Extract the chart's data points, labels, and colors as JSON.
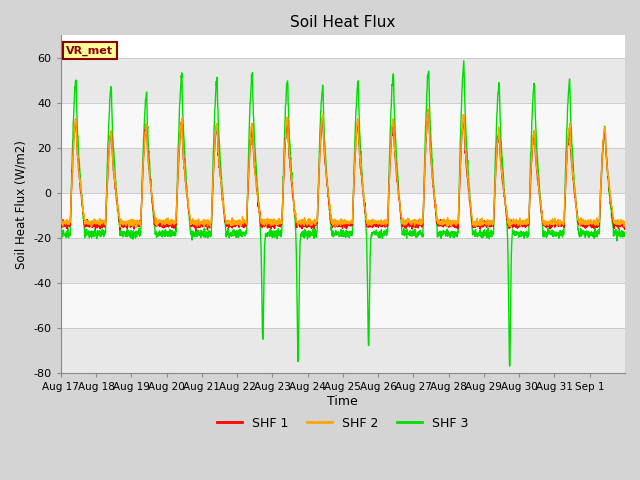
{
  "title": "Soil Heat Flux",
  "xlabel": "Time",
  "ylabel": "Soil Heat Flux (W/m2)",
  "ylim": [
    -80,
    70
  ],
  "yticks": [
    -80,
    -60,
    -40,
    -20,
    0,
    20,
    40,
    60
  ],
  "legend_labels": [
    "SHF 1",
    "SHF 2",
    "SHF 3"
  ],
  "legend_colors": [
    "#ff0000",
    "#ffa500",
    "#00dd00"
  ],
  "line_colors": [
    "#ff0000",
    "#ffa500",
    "#00dd00"
  ],
  "annotation_text": "VR_met",
  "annotation_box_color": "#ffff99",
  "annotation_border_color": "#8B0000",
  "fig_bg_color": "#d4d4d4",
  "plot_bg_color": "#ffffff",
  "n_days": 16,
  "start_day": 17,
  "start_month": "Aug",
  "tick_labels": [
    "Aug 17",
    "Aug 18",
    "Aug 19",
    "Aug 20",
    "Aug 21",
    "Aug 22",
    "Aug 23",
    "Aug 24",
    "Aug 25",
    "Aug 26",
    "Aug 27",
    "Aug 28",
    "Aug 29",
    "Aug 30",
    "Aug 31",
    "Sep 1"
  ],
  "shf1_peaks": [
    32,
    27,
    30,
    31,
    30,
    29,
    32,
    33,
    32,
    32,
    37,
    33,
    27,
    27,
    29,
    28
  ],
  "shf2_peaks": [
    33,
    28,
    30,
    32,
    31,
    31,
    34,
    35,
    33,
    33,
    38,
    35,
    28,
    28,
    30,
    29
  ],
  "shf3_peaks": [
    50,
    47,
    44,
    52,
    51,
    53,
    50,
    47,
    49,
    53,
    55,
    57,
    49,
    49,
    50,
    29
  ],
  "shf3_dip_days": [
    5,
    6,
    8,
    12
  ],
  "shf3_dip_vals": [
    -65,
    -75,
    -68,
    -77
  ],
  "night_val_shf1": -14,
  "night_val_shf2": -13,
  "night_val_shf3": -18
}
